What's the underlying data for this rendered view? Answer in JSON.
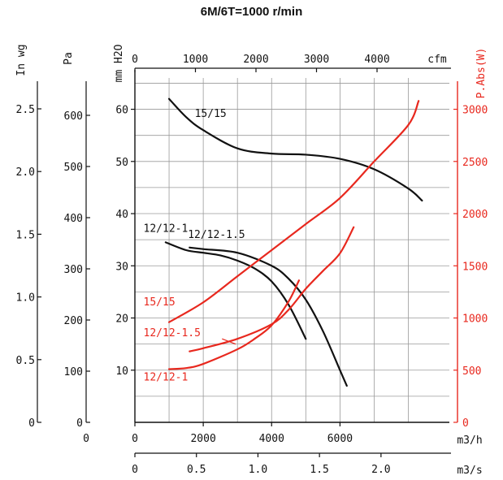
{
  "title": "6M/6T=1000 r/min",
  "colors": {
    "axis": "#111111",
    "grid": "#9a9a9a",
    "pressure": "#111111",
    "power": "#e8281e"
  },
  "axes": {
    "inwg": {
      "label": "In wg",
      "ticks": [
        "0",
        "0.5",
        "1.0",
        "1.5",
        "2.0",
        "2.5"
      ]
    },
    "pa": {
      "label": "Pa",
      "ticks": [
        "0",
        "100",
        "200",
        "300",
        "400",
        "500",
        "600"
      ]
    },
    "mmh2o": {
      "label": "mm H2O",
      "ticks": [
        "10",
        "20",
        "30",
        "40",
        "50",
        "60"
      ]
    },
    "cfm": {
      "label": "cfm",
      "ticks": [
        "0",
        "1000",
        "2000",
        "3000",
        "4000"
      ]
    },
    "m3h": {
      "label": "m3/h",
      "ticks": [
        "0",
        "0",
        "2000",
        "4000",
        "6000"
      ]
    },
    "m3s": {
      "label": "m3/s",
      "ticks": [
        "0",
        "0.5",
        "1.0",
        "1.5",
        "2.0"
      ]
    },
    "power": {
      "label": "P.Abs(W)",
      "ticks": [
        "0",
        "500",
        "1000",
        "1500",
        "2000",
        "2500",
        "3000"
      ]
    }
  },
  "chart_data": {
    "type": "line",
    "title": "6M/6T=1000 r/min",
    "x_unit": "m3/h",
    "xlim": [
      0,
      9200
    ],
    "y_left_unit": "mm H2O",
    "ylim_left": [
      0,
      66
    ],
    "y_right_unit": "P.Abs(W)",
    "ylim_right": [
      0,
      3300
    ],
    "grid": true,
    "series": [
      {
        "name": "15/15",
        "axis": "pressure",
        "label_x": 1750,
        "label_y": 58.5,
        "points": [
          [
            1000,
            62
          ],
          [
            1500,
            58.5
          ],
          [
            2000,
            56
          ],
          [
            3000,
            52.5
          ],
          [
            4000,
            51.5
          ],
          [
            5000,
            51.3
          ],
          [
            6000,
            50.5
          ],
          [
            7000,
            48.5
          ],
          [
            8000,
            44.8
          ],
          [
            8400,
            42.5
          ]
        ]
      },
      {
        "name": "12/12-1",
        "axis": "pressure",
        "label_x": 250,
        "label_y": 36.5,
        "points": [
          [
            900,
            34.5
          ],
          [
            1500,
            33
          ],
          [
            2000,
            32.5
          ],
          [
            2500,
            32
          ],
          [
            3000,
            31
          ],
          [
            3500,
            29.5
          ],
          [
            4000,
            27
          ],
          [
            4500,
            22.5
          ],
          [
            5000,
            16
          ]
        ]
      },
      {
        "name": "12/12-1.5",
        "axis": "pressure",
        "label_x": 1550,
        "label_y": 35.3,
        "points": [
          [
            1600,
            33.5
          ],
          [
            2000,
            33.2
          ],
          [
            3000,
            32.5
          ],
          [
            4000,
            30
          ],
          [
            4500,
            27.5
          ],
          [
            5000,
            23.5
          ],
          [
            5500,
            17.5
          ],
          [
            6000,
            10
          ],
          [
            6200,
            7
          ]
        ]
      },
      {
        "name": "15/15",
        "axis": "power",
        "label_x": 250,
        "label_y": 1120,
        "points": [
          [
            1000,
            960
          ],
          [
            2000,
            1150
          ],
          [
            3000,
            1400
          ],
          [
            4000,
            1650
          ],
          [
            5000,
            1900
          ],
          [
            6000,
            2150
          ],
          [
            7000,
            2500
          ],
          [
            8000,
            2850
          ],
          [
            8300,
            3080
          ]
        ]
      },
      {
        "name": "12/12-1.5",
        "axis": "power",
        "label_x": 250,
        "label_y": 825,
        "points": [
          [
            1600,
            680
          ],
          [
            2000,
            710
          ],
          [
            3000,
            800
          ],
          [
            4000,
            940
          ],
          [
            4500,
            1080
          ],
          [
            5000,
            1280
          ],
          [
            5500,
            1450
          ],
          [
            6000,
            1620
          ],
          [
            6400,
            1870
          ]
        ]
      },
      {
        "name": "12/12-1",
        "axis": "power",
        "label_x": 250,
        "label_y": 400,
        "points": [
          [
            1000,
            510
          ],
          [
            1500,
            520
          ],
          [
            2000,
            560
          ],
          [
            3000,
            700
          ],
          [
            3500,
            800
          ],
          [
            4000,
            930
          ],
          [
            4500,
            1160
          ],
          [
            4800,
            1360
          ]
        ]
      }
    ]
  }
}
